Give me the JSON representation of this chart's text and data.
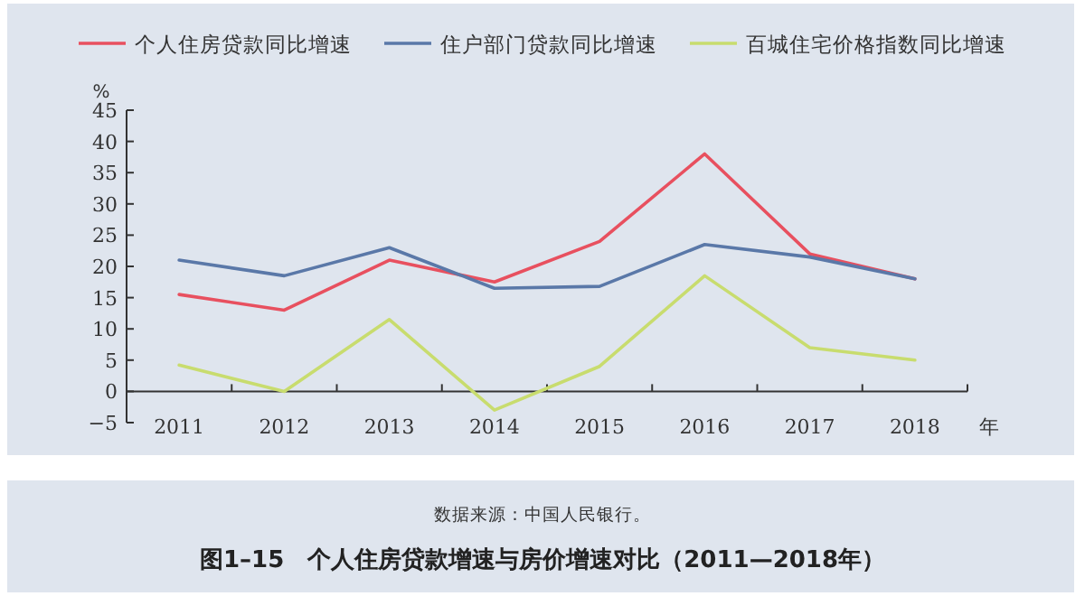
{
  "chart_data": {
    "type": "line",
    "title": "图1–15　个人住房贷款增速与房价增速对比（2011—2018年）",
    "xlabel": "年",
    "ylabel": "%",
    "annotations": [
      "数据来源：中国人民银行。"
    ],
    "categories": [
      "2011",
      "2012",
      "2013",
      "2014",
      "2015",
      "2016",
      "2017",
      "2018"
    ],
    "series": [
      {
        "name": "个人住房贷款同比增速",
        "color": "#e8505f",
        "values": [
          15.5,
          13,
          21,
          17.5,
          24,
          38,
          22,
          18
        ]
      },
      {
        "name": "住户部门贷款同比增速",
        "color": "#5a78a8",
        "values": [
          21,
          18.5,
          23,
          16.5,
          16.8,
          23.5,
          21.5,
          18
        ]
      },
      {
        "name": "百城住宅价格指数同比增速",
        "color": "#c8dc6e",
        "values": [
          4.2,
          0,
          11.5,
          -3,
          4,
          18.5,
          7,
          5
        ]
      }
    ],
    "ylim": [
      -5,
      45
    ],
    "yticks": [
      -5,
      0,
      5,
      10,
      15,
      20,
      25,
      30,
      35,
      40,
      45
    ],
    "legend": "top",
    "grid": false,
    "marker": "none",
    "line_style": "solid"
  }
}
